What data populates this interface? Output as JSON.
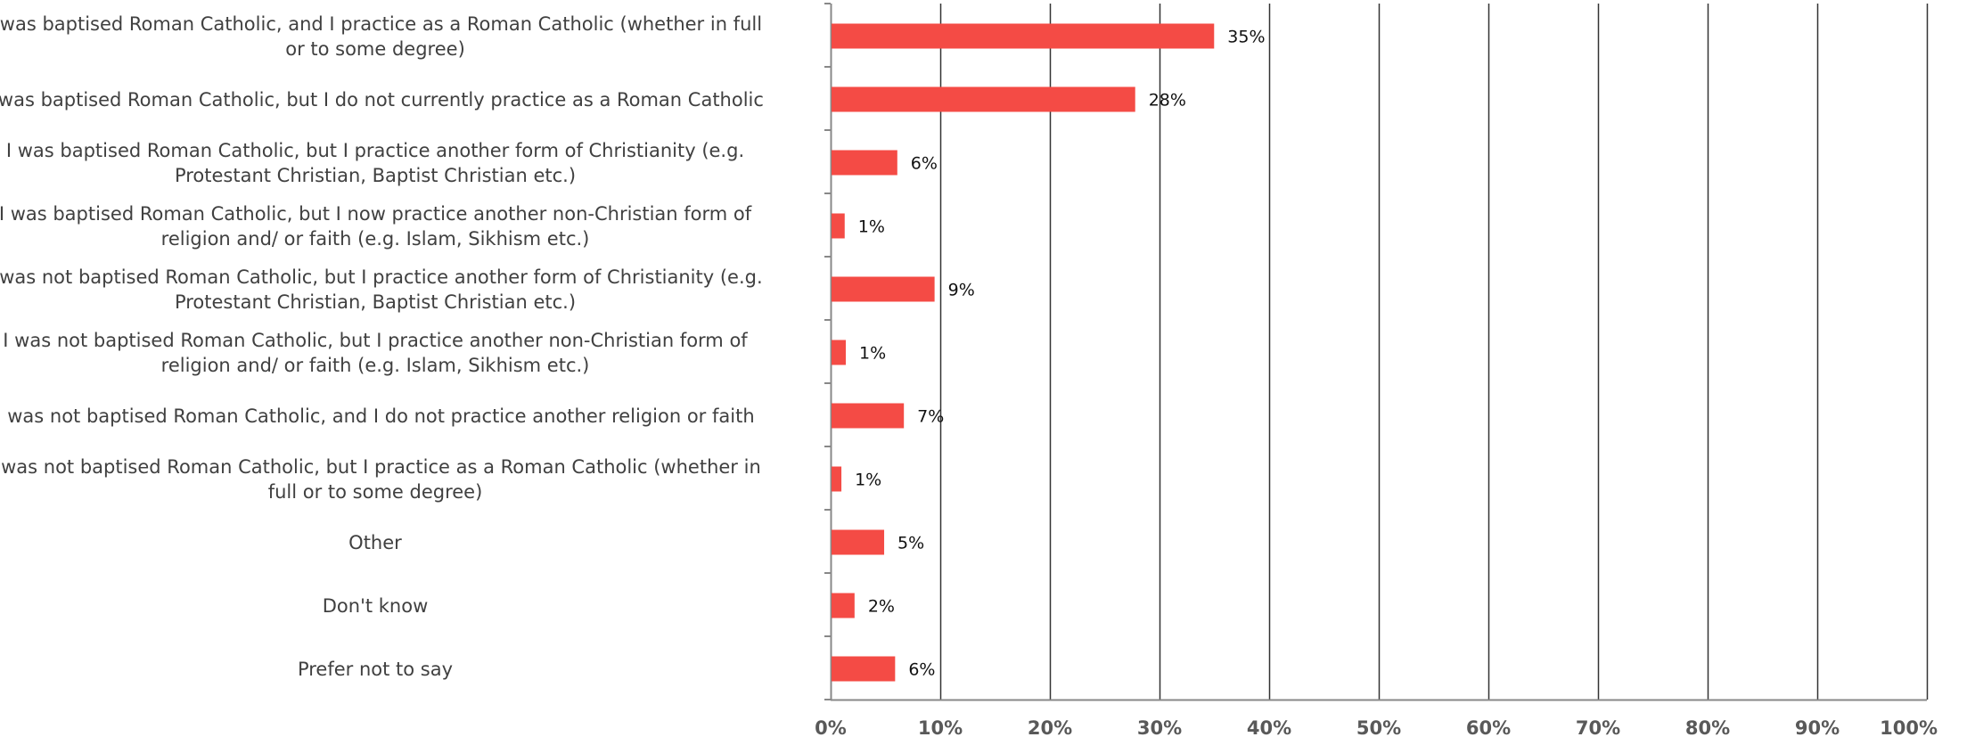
{
  "chart_data": {
    "type": "bar",
    "orientation": "horizontal",
    "categories": [
      "I was baptised Roman Catholic, and I practice as a Roman Catholic (whether in full or to some degree)",
      "I was baptised Roman Catholic, but I do not currently practice as a Roman Catholic",
      "I was baptised Roman Catholic, but I practice another form of Christianity (e.g. Protestant Christian, Baptist Christian etc.)",
      "I was baptised Roman Catholic, but I now practice another non-Christian form of religion and/ or faith (e.g. Islam, Sikhism etc.)",
      "I was not baptised Roman Catholic, but I practice another form of Christianity (e.g. Protestant Christian, Baptist Christian etc.)",
      "I was not baptised Roman Catholic, but I practice another non-Christian form of religion and/ or faith (e.g. Islam, Sikhism etc.)",
      "I was not baptised Roman Catholic, and I do not practice another religion or faith",
      "I was not baptised Roman Catholic, but I practice as a Roman Catholic (whether in full or to some degree)",
      "Other",
      "Don't know",
      "Prefer not to say"
    ],
    "values": [
      34.9,
      27.7,
      6.0,
      1.2,
      9.4,
      1.3,
      6.6,
      0.9,
      4.8,
      2.1,
      5.8
    ],
    "data_labels": [
      "35%",
      "28%",
      "6%",
      "1%",
      "9%",
      "1%",
      "7%",
      "1%",
      "5%",
      "2%",
      "6%"
    ],
    "xlim": [
      0,
      100
    ],
    "xticks": [
      "0%",
      "10%",
      "20%",
      "30%",
      "40%",
      "50%",
      "60%",
      "70%",
      "80%",
      "90%",
      "100%"
    ],
    "grid": "vertical",
    "colors": {
      "bar": "#f44b45",
      "grid": "#333333",
      "axis": "#888888"
    }
  }
}
